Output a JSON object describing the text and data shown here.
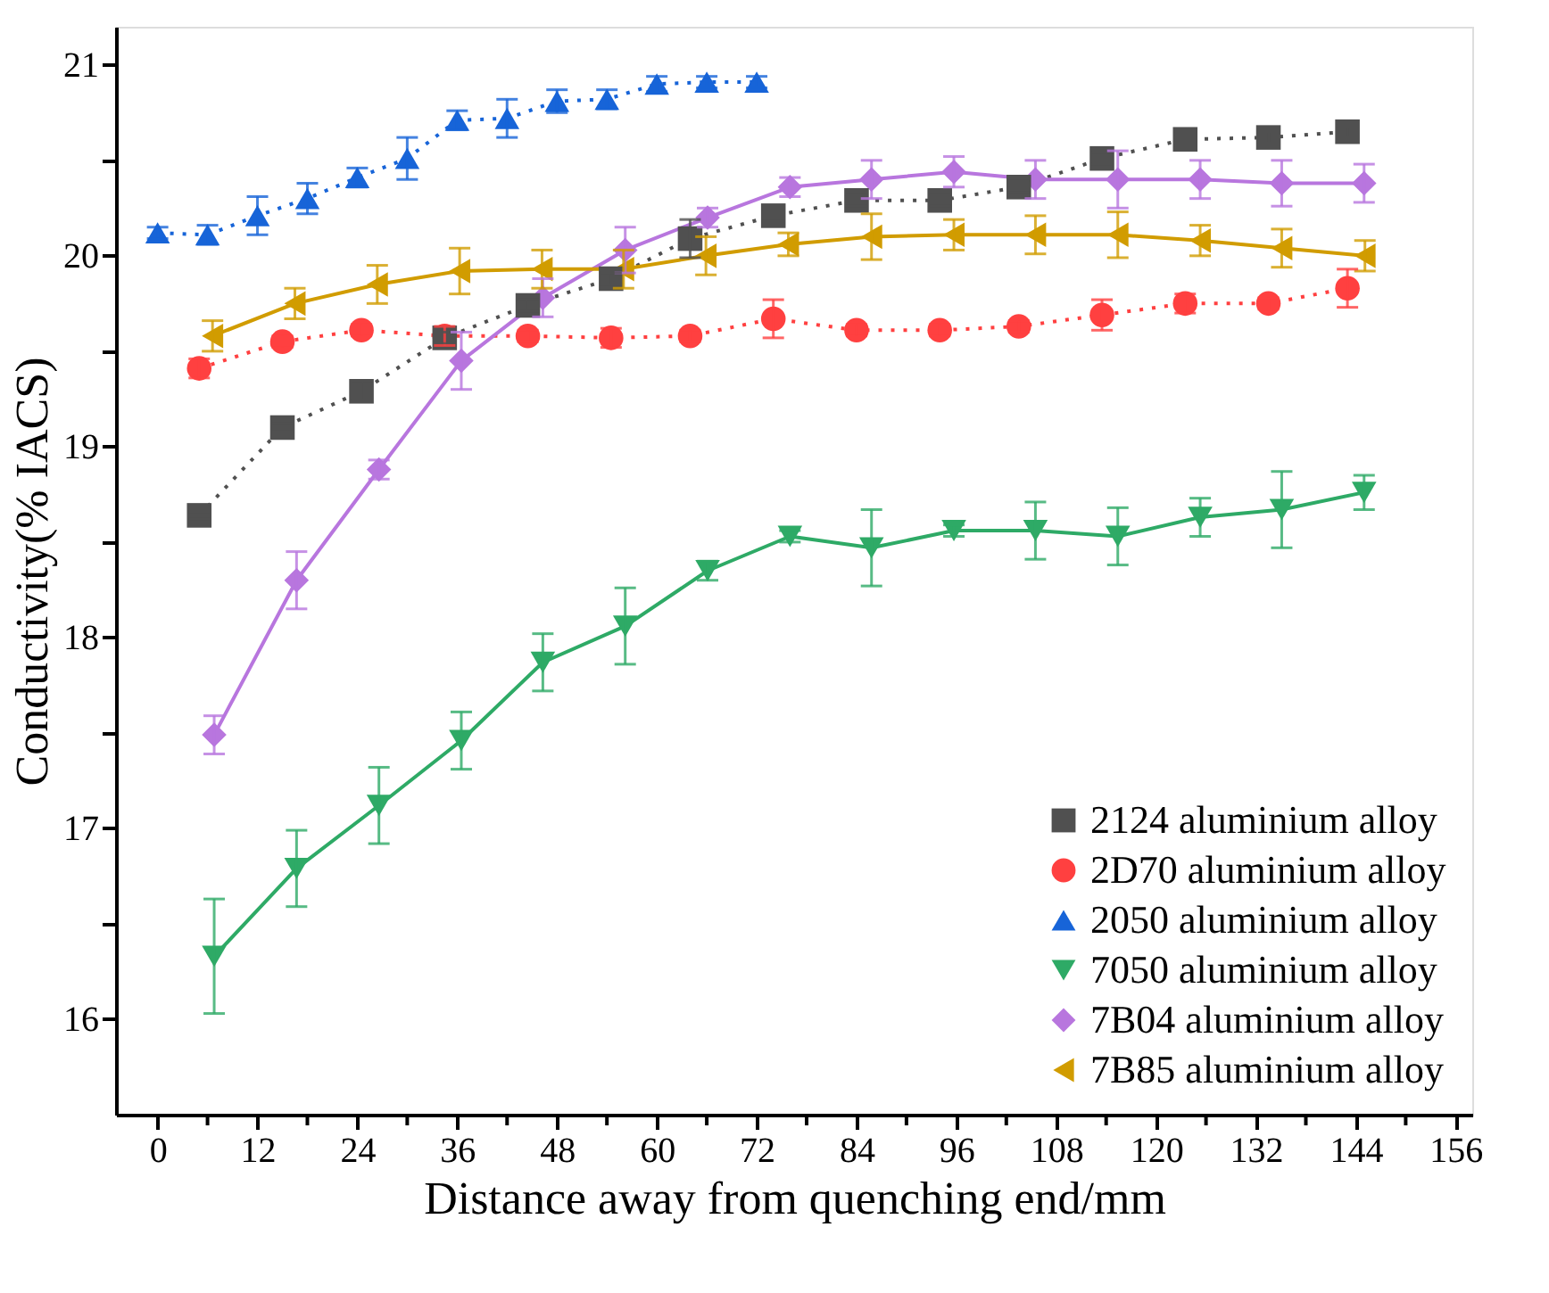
{
  "chart_data": {
    "type": "line",
    "xlabel": "Distance away from quenching end/mm",
    "ylabel": "Conductivity(% IACS)",
    "xlim": [
      -5,
      158
    ],
    "ylim": [
      15.5,
      21.2
    ],
    "xticks": [
      0,
      {
        "value": 6,
        "label": null
      },
      12,
      {
        "value": 18,
        "label": null
      },
      24,
      {
        "value": 30,
        "label": null
      },
      36,
      {
        "value": 42,
        "label": null
      },
      48,
      {
        "value": 54,
        "label": null
      },
      60,
      {
        "value": 66,
        "label": null
      },
      72,
      {
        "value": 78,
        "label": null
      },
      84,
      {
        "value": 90,
        "label": null
      },
      96,
      {
        "value": 102,
        "label": null
      },
      108,
      {
        "value": 114,
        "label": null
      },
      120,
      {
        "value": 126,
        "label": null
      },
      132,
      {
        "value": 138,
        "label": null
      },
      144,
      {
        "value": 150,
        "label": null
      },
      156
    ],
    "yticks": [
      16,
      {
        "value": 16.5,
        "label": null
      },
      17,
      {
        "value": 17.5,
        "label": null
      },
      18,
      {
        "value": 18.5,
        "label": null
      },
      19,
      {
        "value": 19.5,
        "label": null
      },
      20,
      {
        "value": 20.5,
        "label": null
      },
      21
    ],
    "grid": false,
    "legend": "bottom right",
    "series": [
      {
        "name": "2124 aluminium alloy",
        "color": "#505050",
        "marker": "square",
        "line_style": "dotted",
        "x": [
          5,
          15,
          24.5,
          34.5,
          44.5,
          54.5,
          64,
          74,
          84,
          94,
          103.5,
          113.5,
          123.5,
          133.5,
          143
        ],
        "values": [
          18.64,
          19.1,
          19.29,
          19.57,
          19.74,
          19.88,
          20.09,
          20.21,
          20.29,
          20.29,
          20.36,
          20.51,
          20.61,
          20.62,
          20.65
        ],
        "errors": [
          0.02,
          0.02,
          0.05,
          0.03,
          0.03,
          0.03,
          0.1,
          0.03,
          0.03,
          0.03,
          0.03,
          0.03,
          0.03,
          0.03,
          0.03
        ]
      },
      {
        "name": "2D70 aluminium alloy",
        "color": "#ff4040",
        "marker": "circle",
        "line_style": "dotted",
        "x": [
          5,
          15,
          24.5,
          34.5,
          44.5,
          54.5,
          64,
          74,
          84,
          94,
          103.5,
          113.5,
          123.5,
          133.5,
          143
        ],
        "values": [
          19.41,
          19.55,
          19.61,
          19.58,
          19.58,
          19.57,
          19.58,
          19.67,
          19.61,
          19.61,
          19.63,
          19.69,
          19.75,
          19.75,
          19.83
        ],
        "errors": [
          0.05,
          0.03,
          0.03,
          0.05,
          0.03,
          0.05,
          0.03,
          0.1,
          0.03,
          0.03,
          0.03,
          0.08,
          0.05,
          0.03,
          0.1
        ]
      },
      {
        "name": "2050 aluminium alloy",
        "color": "#1764d8",
        "marker": "triangle-up",
        "line_style": "dotted",
        "x": [
          0,
          6,
          12,
          18,
          24,
          30,
          36,
          42,
          48,
          54,
          60,
          66,
          72
        ],
        "values": [
          20.12,
          20.11,
          20.21,
          20.3,
          20.41,
          20.51,
          20.71,
          20.72,
          20.81,
          20.82,
          20.9,
          20.91,
          20.91
        ],
        "errors": [
          0.03,
          0.05,
          0.1,
          0.08,
          0.05,
          0.11,
          0.05,
          0.1,
          0.06,
          0.05,
          0.04,
          0.03,
          0.03
        ]
      },
      {
        "name": "7050 aluminium alloy",
        "color": "#2eaa66",
        "marker": "triangle-down",
        "line_style": "solid",
        "x": [
          6.8,
          16.7,
          26.6,
          36.5,
          46.3,
          56.2,
          66.1,
          76,
          85.8,
          95.7,
          105.5,
          115.4,
          125.3,
          135.1,
          145
        ],
        "values": [
          16.33,
          16.79,
          17.12,
          17.46,
          17.87,
          18.06,
          18.35,
          18.53,
          18.47,
          18.56,
          18.56,
          18.53,
          18.63,
          18.67,
          18.76
        ],
        "errors": [
          0.3,
          0.2,
          0.2,
          0.15,
          0.15,
          0.2,
          0.05,
          0.03,
          0.2,
          0.03,
          0.15,
          0.15,
          0.1,
          0.2,
          0.09
        ]
      },
      {
        "name": "7B04 aluminium alloy",
        "color": "#b876de",
        "marker": "diamond",
        "line_style": "solid",
        "x": [
          6.8,
          16.7,
          26.6,
          36.5,
          46.3,
          56.2,
          66.1,
          76,
          85.8,
          95.7,
          105.5,
          115.4,
          125.3,
          135.1,
          145
        ],
        "values": [
          17.49,
          18.3,
          18.88,
          19.45,
          19.78,
          20.03,
          20.2,
          20.36,
          20.4,
          20.44,
          20.4,
          20.4,
          20.4,
          20.38,
          20.38
        ],
        "errors": [
          0.1,
          0.15,
          0.05,
          0.15,
          0.1,
          0.12,
          0.05,
          0.05,
          0.1,
          0.08,
          0.1,
          0.15,
          0.1,
          0.12,
          0.1
        ]
      },
      {
        "name": "7B85 aluminium alloy",
        "color": "#d19c00",
        "marker": "triangle-left",
        "line_style": "solid",
        "x": [
          6.6,
          16.5,
          26.4,
          36.3,
          46.2,
          56,
          65.9,
          75.8,
          85.8,
          95.7,
          105.5,
          115.4,
          125.3,
          135.1,
          145.1
        ],
        "values": [
          19.58,
          19.75,
          19.85,
          19.92,
          19.93,
          19.93,
          20.0,
          20.06,
          20.1,
          20.11,
          20.11,
          20.11,
          20.08,
          20.04,
          20.0
        ],
        "errors": [
          0.08,
          0.08,
          0.1,
          0.12,
          0.1,
          0.1,
          0.1,
          0.06,
          0.12,
          0.08,
          0.1,
          0.12,
          0.08,
          0.1,
          0.08
        ]
      }
    ]
  }
}
